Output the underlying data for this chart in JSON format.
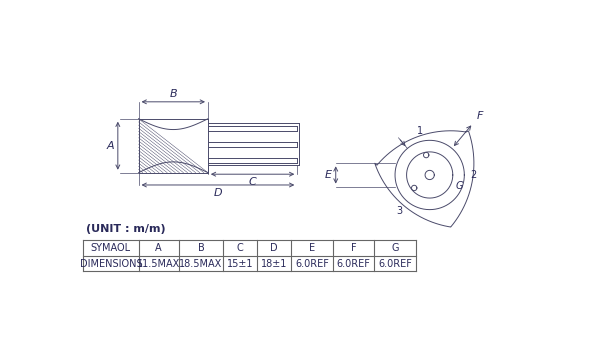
{
  "unit_label": "(UNIT : m/m)",
  "table_headers": [
    "SYMAOL",
    "A",
    "B",
    "C",
    "D",
    "E",
    "F",
    "G"
  ],
  "table_row": [
    "DIMENSIONS",
    "11.5MAX",
    "18.5MAX",
    "15±1",
    "18±1",
    "6.0REF",
    "6.0REF",
    "6.0REF"
  ],
  "bg_color": "#ffffff",
  "line_color": "#4a4a6a",
  "text_color": "#2a2a5a",
  "font_size_dim": 8,
  "font_size_table": 7,
  "font_size_unit": 8
}
